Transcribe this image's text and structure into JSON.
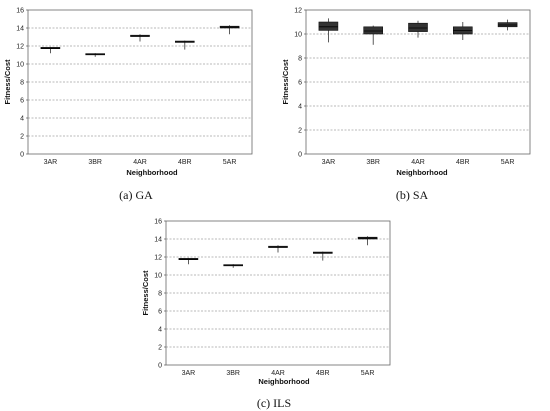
{
  "chart_data": [
    {
      "type": "box",
      "caption": "(a)  GA",
      "xlabel": "Neighborhood",
      "ylabel": "Fitness/Cost",
      "ylim": [
        0,
        16
      ],
      "yticks": [
        "0",
        "2",
        "4",
        "6",
        "8",
        "10",
        "12",
        "14",
        "16"
      ],
      "categories": [
        "3AR",
        "3BR",
        "4AR",
        "4BR",
        "5AR"
      ],
      "boxes": [
        {
          "min": 11.2,
          "q1": 11.7,
          "median": 11.75,
          "q3": 11.85,
          "max": 11.9
        },
        {
          "min": 10.8,
          "q1": 11.05,
          "median": 11.1,
          "q3": 11.15,
          "max": 11.2
        },
        {
          "min": 12.5,
          "q1": 13.05,
          "median": 13.1,
          "q3": 13.2,
          "max": 13.3
        },
        {
          "min": 11.6,
          "q1": 12.4,
          "median": 12.45,
          "q3": 12.55,
          "max": 12.6
        },
        {
          "min": 13.3,
          "q1": 14.0,
          "median": 14.1,
          "q3": 14.2,
          "max": 14.3
        }
      ],
      "grid": true,
      "grid_style": "dashed"
    },
    {
      "type": "box",
      "caption": "(b)  SA",
      "xlabel": "Neighborhood",
      "ylabel": "Fitness/Cost",
      "ylim": [
        0,
        12
      ],
      "yticks": [
        "0",
        "2",
        "4",
        "6",
        "8",
        "10",
        "12"
      ],
      "categories": [
        "3AR",
        "3BR",
        "4AR",
        "4BR",
        "5AR"
      ],
      "boxes": [
        {
          "min": 9.3,
          "q1": 10.3,
          "median": 10.6,
          "q3": 11.0,
          "max": 11.3
        },
        {
          "min": 9.1,
          "q1": 10.0,
          "median": 10.25,
          "q3": 10.6,
          "max": 10.7
        },
        {
          "min": 9.7,
          "q1": 10.2,
          "median": 10.5,
          "q3": 10.9,
          "max": 11.1
        },
        {
          "min": 9.5,
          "q1": 10.0,
          "median": 10.3,
          "q3": 10.6,
          "max": 11.0
        },
        {
          "min": 10.3,
          "q1": 10.6,
          "median": 10.75,
          "q3": 10.95,
          "max": 11.2
        }
      ],
      "grid": true,
      "grid_style": "dashed"
    },
    {
      "type": "box",
      "caption": "(c) ILS",
      "xlabel": "Neighborhood",
      "ylabel": "Fitness/Cost",
      "ylim": [
        0,
        16
      ],
      "yticks": [
        "0",
        "2",
        "4",
        "6",
        "8",
        "10",
        "12",
        "14",
        "16"
      ],
      "categories": [
        "3AR",
        "3BR",
        "4AR",
        "4BR",
        "5AR"
      ],
      "boxes": [
        {
          "min": 11.2,
          "q1": 11.7,
          "median": 11.75,
          "q3": 11.85,
          "max": 11.9
        },
        {
          "min": 10.8,
          "q1": 11.05,
          "median": 11.1,
          "q3": 11.15,
          "max": 11.2
        },
        {
          "min": 12.5,
          "q1": 13.05,
          "median": 13.1,
          "q3": 13.2,
          "max": 13.3
        },
        {
          "min": 11.6,
          "q1": 12.4,
          "median": 12.45,
          "q3": 12.55,
          "max": 12.6
        },
        {
          "min": 13.3,
          "q1": 14.0,
          "median": 14.1,
          "q3": 14.2,
          "max": 14.3
        }
      ],
      "grid": true,
      "grid_style": "dashed"
    }
  ]
}
